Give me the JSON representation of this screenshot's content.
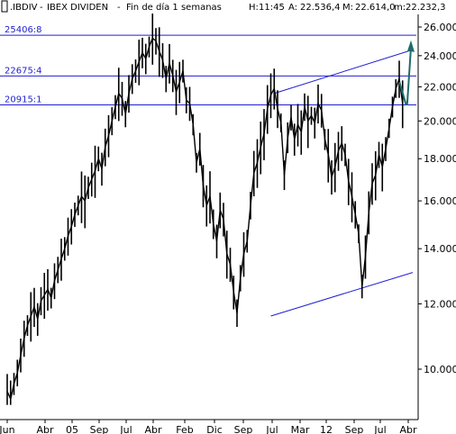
{
  "header": {
    "symbol": ".IBDIV",
    "name": "IBEX DIVIDEN",
    "period": "Fin de día 1 semanas",
    "h_label": "H:",
    "h_value": "11:45",
    "a_label": "A:",
    "a_value": "22.536,4",
    "m_label": "M:",
    "m_value": "22.614,0",
    "low_label": "m:",
    "low_value": "22.232,3"
  },
  "levels": [
    "25406:8",
    "22675:4",
    "20915:1"
  ],
  "colors": {
    "price": "#000000",
    "level_lines": "#1f1fd0",
    "trend_lines": "#1f1fd0",
    "projection_arrow": "#1f6b6b",
    "axis": "#000000"
  },
  "chart_data": {
    "type": "line",
    "title": ".IBDIV - IBEX DIVIDEN - Fin de día 1 semanas",
    "y_scale": "log",
    "ylim": [
      9000,
      26500
    ],
    "y_ticks": [
      "26.000,0",
      "24.000,0",
      "22.000,0",
      "20.000,0",
      "18.000,0",
      "16.000,0",
      "14.000,0",
      "12.000,0",
      "10.000,0"
    ],
    "y_tick_values": [
      26000,
      24000,
      22000,
      20000,
      18000,
      16000,
      14000,
      12000,
      10000
    ],
    "x_tick_labels": [
      "Jun",
      "Abr",
      "05",
      "Sep",
      "Jul",
      "Abr",
      "Feb",
      "Dic",
      "Sep",
      "Jul",
      "Mar",
      "12",
      "Sep",
      "Jul",
      "Abr"
    ],
    "horizontal_levels": [
      25406.8,
      22675.4,
      20915.1
    ],
    "trend_lines": [
      {
        "from": [
          "2010-01",
          21600
        ],
        "to": [
          "2013-06",
          24400
        ]
      },
      {
        "from": [
          "2009-12",
          11600
        ],
        "to": [
          "2013-06",
          13100
        ]
      }
    ],
    "series": [
      {
        "name": "IBEX DIVIDEN",
        "x": [
          "2003-06",
          "2003-07",
          "2003-08",
          "2003-09",
          "2003-10",
          "2003-11",
          "2003-12",
          "2004-01",
          "2004-02",
          "2004-03",
          "2004-04",
          "2004-05",
          "2004-06",
          "2004-07",
          "2004-08",
          "2004-09",
          "2004-10",
          "2004-11",
          "2004-12",
          "2005-01",
          "2005-02",
          "2005-03",
          "2005-04",
          "2005-05",
          "2005-06",
          "2005-07",
          "2005-08",
          "2005-09",
          "2005-10",
          "2005-11",
          "2005-12",
          "2006-01",
          "2006-02",
          "2006-03",
          "2006-04",
          "2006-05",
          "2006-06",
          "2006-07",
          "2006-08",
          "2006-09",
          "2006-10",
          "2006-11",
          "2006-12",
          "2007-01",
          "2007-02",
          "2007-03",
          "2007-04",
          "2007-05",
          "2007-06",
          "2007-07",
          "2007-08",
          "2007-09",
          "2007-10",
          "2007-11",
          "2007-12",
          "2008-01",
          "2008-02",
          "2008-03",
          "2008-04",
          "2008-05",
          "2008-06",
          "2008-07",
          "2008-08",
          "2008-09",
          "2008-10",
          "2008-11",
          "2008-12",
          "2009-01",
          "2009-02",
          "2009-03",
          "2009-04",
          "2009-05",
          "2009-06",
          "2009-07",
          "2009-08",
          "2009-09",
          "2009-10",
          "2009-11",
          "2009-12",
          "2010-01",
          "2010-02",
          "2010-03",
          "2010-04",
          "2010-05",
          "2010-06",
          "2010-07",
          "2010-08",
          "2010-09",
          "2010-10",
          "2010-11",
          "2010-12",
          "2011-01",
          "2011-02",
          "2011-03",
          "2011-04",
          "2011-05",
          "2011-06",
          "2011-07",
          "2011-08",
          "2011-09",
          "2011-10",
          "2011-11",
          "2011-12",
          "2012-01",
          "2012-02",
          "2012-03",
          "2012-04",
          "2012-05",
          "2012-06",
          "2012-07",
          "2012-08",
          "2012-09",
          "2012-10",
          "2012-11",
          "2012-12",
          "2013-01",
          "2013-02",
          "2013-03"
        ],
        "values": [
          9400,
          9200,
          9600,
          9900,
          10400,
          10900,
          11300,
          11600,
          11900,
          11500,
          12100,
          12300,
          12500,
          12200,
          12800,
          13200,
          13600,
          14000,
          14500,
          14900,
          15400,
          15800,
          16200,
          16000,
          16600,
          17000,
          17400,
          18000,
          17500,
          18600,
          19200,
          20000,
          20800,
          21600,
          21300,
          20400,
          21600,
          22500,
          23000,
          23600,
          24200,
          23800,
          24600,
          25200,
          25000,
          24300,
          23700,
          22500,
          23500,
          22700,
          21700,
          22300,
          23000,
          21200,
          21000,
          19800,
          17800,
          18500,
          16700,
          15800,
          16200,
          15000,
          14300,
          15600,
          15200,
          13800,
          13400,
          12400,
          11700,
          12900,
          13800,
          14300,
          15800,
          17300,
          17800,
          18600,
          19300,
          20700,
          21500,
          21900,
          20700,
          19900,
          17200,
          19100,
          20200,
          19000,
          19800,
          19400,
          20800,
          20000,
          20300,
          19900,
          21000,
          20600,
          19000,
          18200,
          17100,
          17600,
          18400,
          18800,
          18200,
          16900,
          16200,
          15400,
          14600,
          12600,
          13700,
          15500,
          16800,
          17200,
          18200,
          17600,
          18500,
          19600,
          20800,
          21900,
          22500,
          21000
        ]
      }
    ],
    "projection": {
      "from": [
        "2013-03",
        21000
      ],
      "to": [
        "2013-06",
        24800
      ]
    }
  }
}
